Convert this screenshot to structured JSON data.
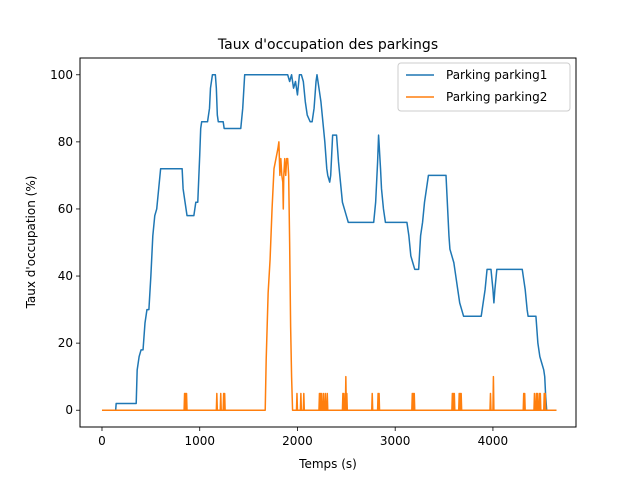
{
  "chart_data": {
    "type": "line",
    "title": "Taux d'occupation des parkings",
    "xlabel": "Temps (s)",
    "ylabel": "Taux d'occupation (%)",
    "xlim": [
      -225,
      4850
    ],
    "ylim": [
      -5,
      105
    ],
    "xticks": [
      0,
      1000,
      2000,
      3000,
      4000
    ],
    "yticks": [
      0,
      20,
      40,
      60,
      80,
      100
    ],
    "grid": false,
    "legend_position": "top-right",
    "series": [
      {
        "name": "Parking parking1",
        "color": "#1f77b4",
        "points": [
          [
            0,
            0
          ],
          [
            140,
            0
          ],
          [
            145,
            2
          ],
          [
            350,
            2
          ],
          [
            360,
            12
          ],
          [
            380,
            16
          ],
          [
            400,
            18
          ],
          [
            420,
            18
          ],
          [
            440,
            26
          ],
          [
            460,
            30
          ],
          [
            480,
            30
          ],
          [
            500,
            40
          ],
          [
            520,
            52
          ],
          [
            540,
            58
          ],
          [
            560,
            60
          ],
          [
            580,
            66
          ],
          [
            600,
            72
          ],
          [
            620,
            72
          ],
          [
            820,
            72
          ],
          [
            830,
            66
          ],
          [
            850,
            62
          ],
          [
            870,
            58
          ],
          [
            940,
            58
          ],
          [
            960,
            62
          ],
          [
            980,
            62
          ],
          [
            1000,
            76
          ],
          [
            1010,
            84
          ],
          [
            1020,
            86
          ],
          [
            1080,
            86
          ],
          [
            1100,
            90
          ],
          [
            1110,
            96
          ],
          [
            1120,
            98
          ],
          [
            1130,
            100
          ],
          [
            1160,
            100
          ],
          [
            1170,
            96
          ],
          [
            1180,
            88
          ],
          [
            1190,
            86
          ],
          [
            1200,
            86
          ],
          [
            1240,
            86
          ],
          [
            1250,
            84
          ],
          [
            1420,
            84
          ],
          [
            1440,
            90
          ],
          [
            1460,
            100
          ],
          [
            1480,
            100
          ],
          [
            1900,
            100
          ],
          [
            1920,
            98
          ],
          [
            1940,
            100
          ],
          [
            1960,
            96
          ],
          [
            1980,
            98
          ],
          [
            2000,
            94
          ],
          [
            2020,
            100
          ],
          [
            2040,
            100
          ],
          [
            2060,
            98
          ],
          [
            2080,
            92
          ],
          [
            2100,
            88
          ],
          [
            2130,
            86
          ],
          [
            2150,
            86
          ],
          [
            2170,
            90
          ],
          [
            2180,
            94
          ],
          [
            2190,
            98
          ],
          [
            2200,
            100
          ],
          [
            2220,
            96
          ],
          [
            2240,
            92
          ],
          [
            2260,
            86
          ],
          [
            2280,
            80
          ],
          [
            2290,
            76
          ],
          [
            2300,
            72
          ],
          [
            2310,
            70
          ],
          [
            2330,
            68
          ],
          [
            2340,
            70
          ],
          [
            2350,
            76
          ],
          [
            2360,
            82
          ],
          [
            2400,
            82
          ],
          [
            2420,
            74
          ],
          [
            2440,
            68
          ],
          [
            2460,
            62
          ],
          [
            2480,
            60
          ],
          [
            2500,
            58
          ],
          [
            2520,
            56
          ],
          [
            2780,
            56
          ],
          [
            2800,
            62
          ],
          [
            2820,
            74
          ],
          [
            2830,
            82
          ],
          [
            2850,
            72
          ],
          [
            2860,
            66
          ],
          [
            2880,
            60
          ],
          [
            2900,
            56
          ],
          [
            3120,
            56
          ],
          [
            3140,
            52
          ],
          [
            3160,
            46
          ],
          [
            3180,
            44
          ],
          [
            3200,
            42
          ],
          [
            3240,
            42
          ],
          [
            3260,
            52
          ],
          [
            3280,
            56
          ],
          [
            3300,
            62
          ],
          [
            3320,
            66
          ],
          [
            3340,
            70
          ],
          [
            3520,
            70
          ],
          [
            3530,
            64
          ],
          [
            3540,
            58
          ],
          [
            3550,
            52
          ],
          [
            3560,
            48
          ],
          [
            3580,
            46
          ],
          [
            3600,
            44
          ],
          [
            3620,
            40
          ],
          [
            3640,
            36
          ],
          [
            3660,
            32
          ],
          [
            3680,
            30
          ],
          [
            3700,
            28
          ],
          [
            3880,
            28
          ],
          [
            3900,
            32
          ],
          [
            3920,
            36
          ],
          [
            3940,
            42
          ],
          [
            3980,
            42
          ],
          [
            4000,
            36
          ],
          [
            4010,
            32
          ],
          [
            4020,
            36
          ],
          [
            4040,
            42
          ],
          [
            4300,
            42
          ],
          [
            4310,
            40
          ],
          [
            4330,
            36
          ],
          [
            4350,
            30
          ],
          [
            4360,
            28
          ],
          [
            4440,
            28
          ],
          [
            4460,
            20
          ],
          [
            4480,
            16
          ],
          [
            4500,
            14
          ],
          [
            4520,
            12
          ],
          [
            4530,
            10
          ],
          [
            4540,
            4
          ],
          [
            4550,
            0
          ],
          [
            4650,
            0
          ]
        ]
      },
      {
        "name": "Parking parking2",
        "color": "#ff7f0e",
        "points": [
          [
            0,
            0
          ],
          [
            840,
            0
          ],
          [
            845,
            5
          ],
          [
            850,
            0
          ],
          [
            855,
            5
          ],
          [
            860,
            0
          ],
          [
            865,
            5
          ],
          [
            870,
            0
          ],
          [
            1170,
            0
          ],
          [
            1175,
            5
          ],
          [
            1180,
            0
          ],
          [
            1210,
            0
          ],
          [
            1215,
            5
          ],
          [
            1220,
            0
          ],
          [
            1240,
            0
          ],
          [
            1245,
            5
          ],
          [
            1250,
            0
          ],
          [
            1255,
            5
          ],
          [
            1260,
            0
          ],
          [
            1670,
            0
          ],
          [
            1680,
            15
          ],
          [
            1700,
            35
          ],
          [
            1720,
            45
          ],
          [
            1740,
            60
          ],
          [
            1760,
            72
          ],
          [
            1780,
            75
          ],
          [
            1800,
            78
          ],
          [
            1810,
            80
          ],
          [
            1820,
            70
          ],
          [
            1830,
            75
          ],
          [
            1840,
            70
          ],
          [
            1850,
            68
          ],
          [
            1855,
            60
          ],
          [
            1860,
            70
          ],
          [
            1870,
            75
          ],
          [
            1880,
            70
          ],
          [
            1890,
            75
          ],
          [
            1900,
            75
          ],
          [
            1910,
            70
          ],
          [
            1920,
            50
          ],
          [
            1930,
            25
          ],
          [
            1940,
            10
          ],
          [
            1950,
            0
          ],
          [
            1990,
            0
          ],
          [
            1995,
            5
          ],
          [
            2000,
            0
          ],
          [
            2030,
            0
          ],
          [
            2035,
            5
          ],
          [
            2040,
            0
          ],
          [
            2060,
            0
          ],
          [
            2065,
            5
          ],
          [
            2070,
            0
          ],
          [
            2220,
            0
          ],
          [
            2225,
            5
          ],
          [
            2230,
            0
          ],
          [
            2235,
            5
          ],
          [
            2240,
            0
          ],
          [
            2245,
            5
          ],
          [
            2250,
            0
          ],
          [
            2260,
            0
          ],
          [
            2265,
            5
          ],
          [
            2270,
            0
          ],
          [
            2280,
            0
          ],
          [
            2285,
            5
          ],
          [
            2290,
            0
          ],
          [
            2300,
            0
          ],
          [
            2305,
            5
          ],
          [
            2310,
            0
          ],
          [
            2460,
            0
          ],
          [
            2465,
            5
          ],
          [
            2470,
            0
          ],
          [
            2475,
            5
          ],
          [
            2480,
            0
          ],
          [
            2490,
            0
          ],
          [
            2495,
            10
          ],
          [
            2500,
            0
          ],
          [
            2505,
            5
          ],
          [
            2510,
            0
          ],
          [
            2760,
            0
          ],
          [
            2765,
            5
          ],
          [
            2770,
            0
          ],
          [
            2820,
            0
          ],
          [
            2825,
            5
          ],
          [
            2830,
            0
          ],
          [
            2835,
            5
          ],
          [
            2840,
            0
          ],
          [
            3170,
            0
          ],
          [
            3175,
            5
          ],
          [
            3180,
            0
          ],
          [
            3185,
            5
          ],
          [
            3190,
            0
          ],
          [
            3195,
            5
          ],
          [
            3200,
            0
          ],
          [
            3580,
            0
          ],
          [
            3585,
            5
          ],
          [
            3590,
            0
          ],
          [
            3595,
            5
          ],
          [
            3600,
            0
          ],
          [
            3605,
            5
          ],
          [
            3610,
            0
          ],
          [
            3650,
            0
          ],
          [
            3655,
            5
          ],
          [
            3660,
            0
          ],
          [
            3665,
            5
          ],
          [
            3670,
            0
          ],
          [
            3675,
            5
          ],
          [
            3680,
            0
          ],
          [
            3970,
            0
          ],
          [
            3975,
            5
          ],
          [
            3980,
            0
          ],
          [
            4000,
            0
          ],
          [
            4005,
            10
          ],
          [
            4010,
            0
          ],
          [
            4310,
            0
          ],
          [
            4315,
            5
          ],
          [
            4320,
            0
          ],
          [
            4325,
            5
          ],
          [
            4330,
            0
          ],
          [
            4420,
            0
          ],
          [
            4425,
            5
          ],
          [
            4430,
            0
          ],
          [
            4440,
            0
          ],
          [
            4445,
            5
          ],
          [
            4450,
            0
          ],
          [
            4455,
            5
          ],
          [
            4460,
            0
          ],
          [
            4470,
            0
          ],
          [
            4475,
            5
          ],
          [
            4480,
            0
          ],
          [
            4485,
            5
          ],
          [
            4490,
            0
          ],
          [
            4520,
            0
          ],
          [
            4525,
            5
          ],
          [
            4530,
            0
          ],
          [
            4535,
            5
          ],
          [
            4540,
            0
          ],
          [
            4650,
            0
          ]
        ]
      }
    ]
  }
}
